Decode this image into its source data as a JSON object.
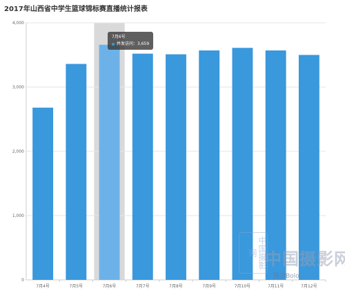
{
  "title": "2017年山西省中学生篮球锦标赛直播统计报表",
  "chart_data": {
    "type": "bar",
    "title": "2017年山西省中学生篮球锦标赛直播统计报表",
    "categories": [
      "7月4号",
      "7月5号",
      "7月6号",
      "7月7号",
      "7月8号",
      "7月9号",
      "7月10号",
      "7月11号",
      "7月12号"
    ],
    "series": [
      {
        "name": "并发访问",
        "values": [
          2680,
          3360,
          3659,
          3520,
          3510,
          3570,
          3610,
          3570,
          3500
        ]
      }
    ],
    "yticks": [
      "0",
      "1,000",
      "2,000",
      "3,000",
      "4,000"
    ],
    "ylim": [
      0,
      4000
    ],
    "grid": true,
    "highlight_index": 2
  },
  "tooltip": {
    "header": "7月6号",
    "series_label": "并发访问：",
    "value_text": "3,659"
  },
  "colors": {
    "bar": "#3a98dc",
    "bar_highlight": "#6cb2e8",
    "highlight_band": "#d9d9d9",
    "grid": "#e6e6e6",
    "axis": "#cccccc"
  },
  "watermark": {
    "main": "中国摄影网",
    "sub": "铁汉Bolo",
    "seal": "中国摄影网"
  }
}
